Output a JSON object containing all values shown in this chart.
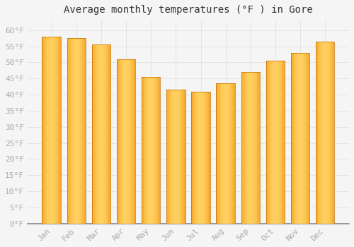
{
  "title": "Average monthly temperatures (°F ) in Gore",
  "months": [
    "Jan",
    "Feb",
    "Mar",
    "Apr",
    "May",
    "Jun",
    "Jul",
    "Aug",
    "Sep",
    "Oct",
    "Nov",
    "Dec"
  ],
  "values": [
    58,
    57.5,
    55.5,
    51,
    45.5,
    41.5,
    41,
    43.5,
    47,
    50.5,
    53,
    56.5
  ],
  "bar_color_center": "#FFD060",
  "bar_color_edge": "#F0900A",
  "background_color": "#F5F5F5",
  "grid_color": "#DDDDDD",
  "ylim": [
    0,
    63
  ],
  "yticks": [
    0,
    5,
    10,
    15,
    20,
    25,
    30,
    35,
    40,
    45,
    50,
    55,
    60
  ],
  "tick_label_color": "#AAAAAA",
  "title_color": "#333333",
  "title_fontsize": 10,
  "font_family": "monospace",
  "bar_width": 0.75
}
